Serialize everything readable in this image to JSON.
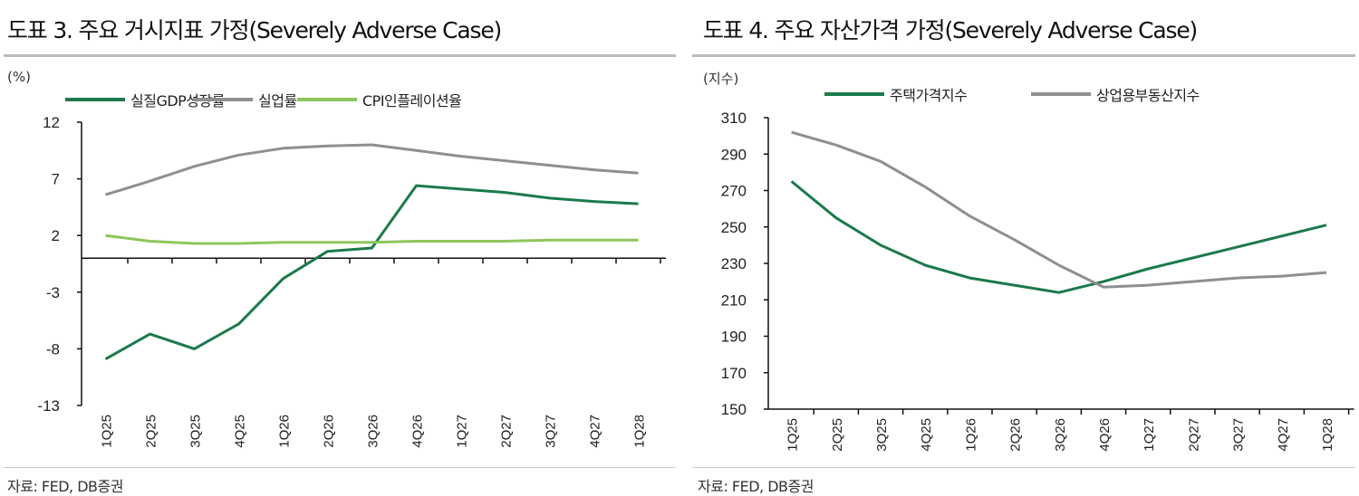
{
  "left_panel": {
    "title": "도표 3. 주요 거시지표 가정(Severely Adverse Case)",
    "unit": "(%)",
    "source": "자료: FED, DB증권"
  },
  "right_panel": {
    "title": "도표 4. 주요 자산가격 가정(Severely Adverse Case)",
    "unit": "(지수)",
    "source": "자료: FED, DB증권"
  },
  "chart_data": [
    {
      "type": "line",
      "title": "도표 3. 주요 거시지표 가정(Severely Adverse Case)",
      "ylabel": "(%)",
      "ylim": [
        -13,
        12
      ],
      "yticks": [
        "12",
        "7",
        "2",
        "-3",
        "-8",
        "-13"
      ],
      "ytick_values": [
        12,
        7,
        2,
        -3,
        -8,
        -13
      ],
      "grid": false,
      "legend": "top",
      "categories": [
        "1Q25",
        "2Q25",
        "3Q25",
        "4Q25",
        "1Q26",
        "2Q26",
        "3Q26",
        "4Q26",
        "1Q27",
        "2Q27",
        "3Q27",
        "4Q27",
        "1Q28"
      ],
      "series": [
        {
          "name": "실질GDP성장률",
          "color": "#1b7a4b",
          "values": [
            -8.9,
            -6.7,
            -8.0,
            -5.8,
            -1.8,
            0.6,
            0.9,
            6.4,
            6.1,
            5.8,
            5.3,
            5.0,
            4.8
          ]
        },
        {
          "name": "실업률",
          "color": "#8f8f8f",
          "values": [
            5.6,
            6.8,
            8.1,
            9.1,
            9.7,
            9.9,
            10.0,
            9.5,
            9.0,
            8.6,
            8.2,
            7.8,
            7.5
          ]
        },
        {
          "name": "CPI인플레이션율",
          "color": "#8dc65c",
          "values": [
            2.0,
            1.5,
            1.3,
            1.3,
            1.4,
            1.4,
            1.4,
            1.5,
            1.5,
            1.5,
            1.6,
            1.6,
            1.6
          ]
        }
      ]
    },
    {
      "type": "line",
      "title": "도표 4. 주요 자산가격 가정(Severely Adverse Case)",
      "ylabel": "(지수)",
      "ylim": [
        150,
        310
      ],
      "yticks": [
        "310",
        "290",
        "270",
        "250",
        "230",
        "210",
        "190",
        "170",
        "150"
      ],
      "ytick_values": [
        310,
        290,
        270,
        250,
        230,
        210,
        190,
        170,
        150
      ],
      "grid": false,
      "legend": "top",
      "categories": [
        "1Q25",
        "2Q25",
        "3Q25",
        "4Q25",
        "1Q26",
        "2Q26",
        "3Q26",
        "4Q26",
        "1Q27",
        "2Q27",
        "3Q27",
        "4Q27",
        "1Q28"
      ],
      "series": [
        {
          "name": "주택가격지수",
          "color": "#1b7a4b",
          "values": [
            275,
            255,
            240,
            229,
            222,
            218,
            214,
            220,
            227,
            233,
            239,
            245,
            251
          ]
        },
        {
          "name": "상업용부동산지수",
          "color": "#8f8f8f",
          "values": [
            302,
            295,
            286,
            272,
            256,
            243,
            229,
            217,
            218,
            220,
            222,
            223,
            225
          ]
        }
      ]
    }
  ]
}
